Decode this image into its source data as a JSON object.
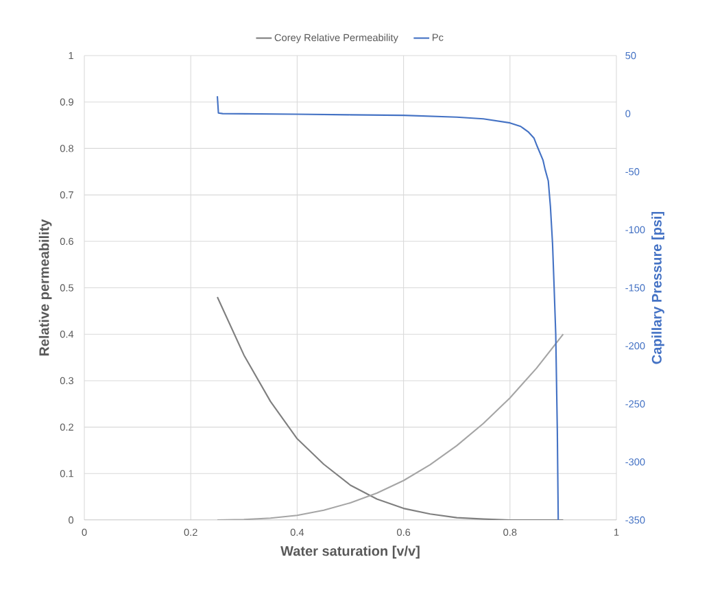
{
  "chart_data": {
    "type": "line",
    "xlabel": "Water saturation [v/v]",
    "ylabel": "Relative permeability",
    "y2label": "Capillary Pressure [psi]",
    "x": [
      0.25,
      0.3,
      0.35,
      0.4,
      0.45,
      0.5,
      0.55,
      0.6,
      0.65,
      0.7,
      0.75,
      0.8,
      0.85,
      0.9
    ],
    "series": [
      {
        "name": "Corey Relative Permeability",
        "color": "#7f7f7f",
        "values": [
          0.48,
          0.355,
          0.255,
          0.175,
          0.12,
          0.075,
          0.045,
          0.025,
          0.013,
          0.005,
          0.002,
          0,
          0,
          0
        ]
      },
      {
        "color": "#a5a5a5",
        "values": [
          0,
          0.001,
          0.004,
          0.01,
          0.021,
          0.037,
          0.058,
          0.085,
          0.119,
          0.16,
          0.208,
          0.263,
          0.327,
          0.4
        ]
      },
      {
        "name": "Pc",
        "color": "#4472c4",
        "axis": "y2",
        "x": [
          0.25,
          0.252,
          0.26,
          0.4,
          0.5,
          0.6,
          0.7,
          0.75,
          0.8,
          0.82,
          0.835,
          0.845,
          0.851,
          0.862,
          0.866,
          0.872,
          0.876,
          0.88,
          0.883,
          0.886,
          0.889,
          0.8907
        ],
        "values": [
          15,
          0.5,
          0,
          -0.5,
          -1,
          -1.5,
          -3,
          -4.5,
          -8,
          -11,
          -16,
          -21,
          -28,
          -40,
          -48,
          -58,
          -80,
          -112,
          -150,
          -190,
          -274,
          -350
        ]
      }
    ],
    "xlim": [
      0,
      1
    ],
    "xticks": [
      0,
      0.2,
      0.4,
      0.6,
      0.8,
      1
    ],
    "ylim": [
      0,
      1
    ],
    "yticks": [
      0,
      0.1,
      0.2,
      0.3,
      0.4,
      0.5,
      0.6,
      0.7,
      0.8,
      0.9,
      1
    ],
    "y2lim": [
      -350,
      50
    ],
    "y2ticks": [
      -350,
      -300,
      -250,
      -200,
      -150,
      -100,
      -50,
      0,
      50
    ],
    "grid": true,
    "legend": "top"
  }
}
